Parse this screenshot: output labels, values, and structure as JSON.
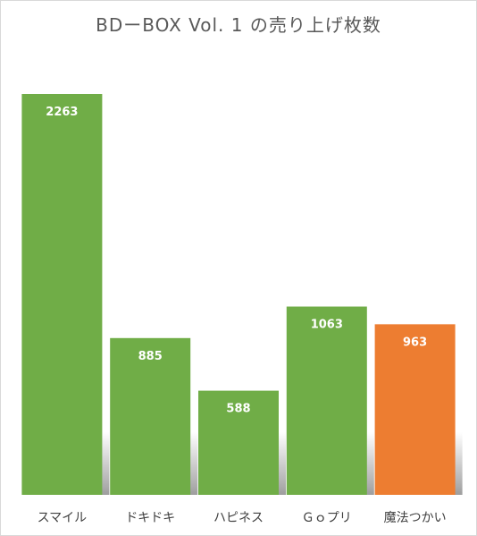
{
  "chart_data": {
    "type": "bar",
    "title": "BDーBOX  Vol. 1  の売り上げ枚数",
    "categories": [
      "スマイル",
      "ドキドキ",
      "ハピネス",
      "Ｇｏプリ",
      "魔法つかい"
    ],
    "values": [
      2263,
      885,
      588,
      1063,
      963
    ],
    "data_labels": [
      "2263",
      "885",
      "588",
      "1063",
      "963"
    ],
    "bar_colors": [
      "#70ad47",
      "#70ad47",
      "#70ad47",
      "#70ad47",
      "#ed7d31"
    ],
    "ylim": [
      0,
      2263
    ],
    "grid": false,
    "legend": "none",
    "xlabel": "",
    "ylabel": ""
  }
}
